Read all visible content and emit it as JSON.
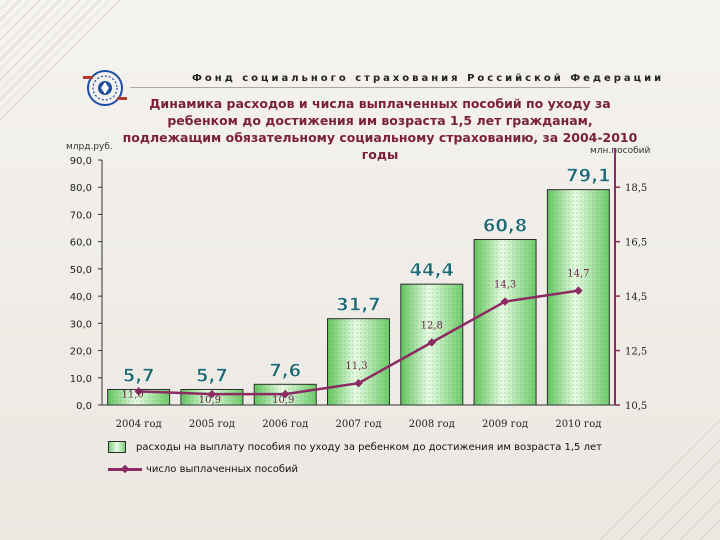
{
  "header": {
    "org_title": "Фонд социального страхования Российской Федерации"
  },
  "chart_data": {
    "type": "bar",
    "title": "Динамика расходов и числа выплаченных пособий по уходу за ребенком до достижения им возраста 1,5 лет гражданам, подлежащим обязательному социальному страхованию, за 2004-2010 годы",
    "categories": [
      "2004 год",
      "2005 год",
      "2006 год",
      "2007 год",
      "2008 год",
      "2009 год",
      "2010 год"
    ],
    "y_left": {
      "label": "млрд.руб.",
      "ylim": [
        0,
        90
      ],
      "ticks": [
        "0,0",
        "10,0",
        "20,0",
        "30,0",
        "40,0",
        "50,0",
        "60,0",
        "70,0",
        "80,0",
        "90,0"
      ]
    },
    "y_right": {
      "label": "млн.пособий",
      "ylim": [
        10.5,
        19.5
      ],
      "ticks": [
        "10,5",
        "12,5",
        "14,5",
        "16,5",
        "18,5"
      ]
    },
    "series": [
      {
        "name": "расходы на выплату пособия по уходу за ребенком до достижения им возраста 1,5 лет",
        "kind": "bar",
        "axis": "left",
        "values": [
          5.7,
          5.7,
          7.6,
          31.7,
          44.4,
          60.8,
          79.1
        ],
        "labels": [
          "5,7",
          "5,7",
          "7,6",
          "31,7",
          "44,4",
          "60,8",
          "79,1"
        ],
        "color": "#7fd17c"
      },
      {
        "name": "число выплаченных пособий",
        "kind": "line",
        "axis": "right",
        "values": [
          11.0,
          10.9,
          10.9,
          11.3,
          12.8,
          14.3,
          14.7
        ],
        "labels": [
          "11,0",
          "10,9",
          "10,9",
          "11,3",
          "12,8",
          "14,3",
          "14,7"
        ],
        "color": "#8b2a63"
      }
    ],
    "grid": false,
    "legend_position": "bottom"
  }
}
